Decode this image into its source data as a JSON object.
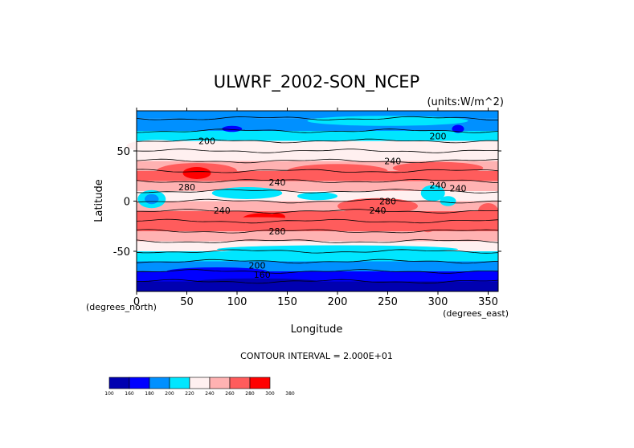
{
  "chart_data": {
    "type": "heatmap",
    "title": "ULWRF_2002-SON_NCEP",
    "units": "(units:W/m^2)",
    "xlabel": "Longitude",
    "ylabel": "Latitude",
    "x_unit_label": "(degrees_east)",
    "y_unit_label": "(degrees_north)",
    "xlim": [
      0,
      360
    ],
    "ylim": [
      -90,
      90
    ],
    "x_ticks": [
      "0",
      "50",
      "100",
      "150",
      "200",
      "250",
      "300",
      "350"
    ],
    "y_ticks": [
      "50",
      "0",
      "-50"
    ],
    "contour_interval_text": "CONTOUR INTERVAL = 2.000E+01",
    "contour_labels": [
      "200",
      "200",
      "240",
      "240",
      "240",
      "240",
      "240",
      "240",
      "280",
      "280",
      "280",
      "200",
      "160"
    ],
    "levels": [
      100,
      160,
      180,
      200,
      220,
      240,
      260,
      280,
      300,
      380
    ],
    "level_labels": [
      "100",
      "160",
      "180",
      "200",
      "220",
      "240",
      "260",
      "280",
      "300",
      "380"
    ],
    "colors": [
      "#0000b0",
      "#0000ff",
      "#0090ff",
      "#00e6ff",
      "#fff0f0",
      "#ffb2b2",
      "#ff5c5c",
      "#ff0000"
    ],
    "zonal_profile": [
      {
        "lat": 90,
        "value": 198
      },
      {
        "lat": 75,
        "value": 190
      },
      {
        "lat": 65,
        "value": 205
      },
      {
        "lat": 55,
        "value": 222
      },
      {
        "lat": 45,
        "value": 238
      },
      {
        "lat": 35,
        "value": 258
      },
      {
        "lat": 25,
        "value": 268
      },
      {
        "lat": 15,
        "value": 246
      },
      {
        "lat": 5,
        "value": 232
      },
      {
        "lat": -5,
        "value": 248
      },
      {
        "lat": -15,
        "value": 265
      },
      {
        "lat": -25,
        "value": 268
      },
      {
        "lat": -35,
        "value": 250
      },
      {
        "lat": -45,
        "value": 228
      },
      {
        "lat": -55,
        "value": 205
      },
      {
        "lat": -65,
        "value": 192
      },
      {
        "lat": -75,
        "value": 170
      },
      {
        "lat": -85,
        "value": 150
      }
    ]
  }
}
